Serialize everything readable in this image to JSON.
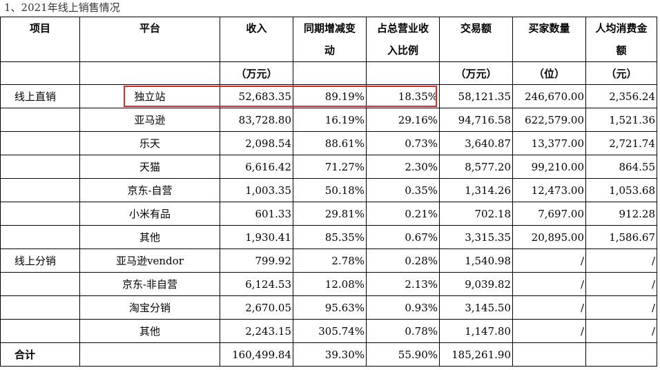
{
  "title": "1、2021年线上销售情况",
  "header": {
    "col1": "项目",
    "col2": "平台",
    "col3": "收入",
    "col4_a": "同期增减变",
    "col4_b": "动",
    "col5_a": "占总营业收",
    "col5_b": "入比例",
    "col6": "交易额",
    "col7": "买家数量",
    "col8_a": "人均消费金",
    "col8_b": "额"
  },
  "units": {
    "revenue": "（万元）",
    "gmv": "（万元）",
    "buyers": "（位）",
    "avg": "（元）"
  },
  "rows": [
    {
      "category": "线上直销",
      "platform": "独立站",
      "revenue": "52,683.35",
      "yoy": "89.19%",
      "share": "18.35%",
      "gmv": "58,121.35",
      "buyers": "246,670.00",
      "avg": "2,356.24"
    },
    {
      "category": "",
      "platform": "亚马逊",
      "revenue": "83,728.80",
      "yoy": "16.19%",
      "share": "29.16%",
      "gmv": "94,716.58",
      "buyers": "622,579.00",
      "avg": "1,521.36"
    },
    {
      "category": "",
      "platform": "乐天",
      "revenue": "2,098.54",
      "yoy": "88.61%",
      "share": "0.73%",
      "gmv": "3,640.87",
      "buyers": "13,377.00",
      "avg": "2,721.74"
    },
    {
      "category": "",
      "platform": "天猫",
      "revenue": "6,616.42",
      "yoy": "71.27%",
      "share": "2.30%",
      "gmv": "8,577.20",
      "buyers": "99,210.00",
      "avg": "864.55"
    },
    {
      "category": "",
      "platform": "京东-自营",
      "revenue": "1,003.35",
      "yoy": "50.18%",
      "share": "0.35%",
      "gmv": "1,314.26",
      "buyers": "12,473.00",
      "avg": "1,053.68"
    },
    {
      "category": "",
      "platform": "小米有品",
      "revenue": "601.33",
      "yoy": "29.81%",
      "share": "0.21%",
      "gmv": "702.18",
      "buyers": "7,697.00",
      "avg": "912.28"
    },
    {
      "category": "",
      "platform": "其他",
      "revenue": "1,930.41",
      "yoy": "85.35%",
      "share": "0.67%",
      "gmv": "3,315.35",
      "buyers": "20,895.00",
      "avg": "1,586.67"
    },
    {
      "category": "线上分销",
      "platform": "亚马逊vendor",
      "revenue": "799.92",
      "yoy": "2.78%",
      "share": "0.28%",
      "gmv": "1,540.98",
      "buyers": "/",
      "avg": "/"
    },
    {
      "category": "",
      "platform": "京东-非自营",
      "revenue": "6,124.53",
      "yoy": "12.08%",
      "share": "2.13%",
      "gmv": "9,039.82",
      "buyers": "/",
      "avg": "/"
    },
    {
      "category": "",
      "platform": "淘宝分销",
      "revenue": "2,670.05",
      "yoy": "95.63%",
      "share": "0.93%",
      "gmv": "3,145.50",
      "buyers": "/",
      "avg": "/"
    },
    {
      "category": "",
      "platform": "其他",
      "revenue": "2,243.15",
      "yoy": "305.74%",
      "share": "0.78%",
      "gmv": "1,147.80",
      "buyers": "/",
      "avg": "/"
    }
  ],
  "total": {
    "label": "合计",
    "revenue": "160,499.84",
    "yoy": "39.30%",
    "share": "55.90%",
    "gmv": "185,261.90"
  },
  "highlight_color": "#d82b2b"
}
